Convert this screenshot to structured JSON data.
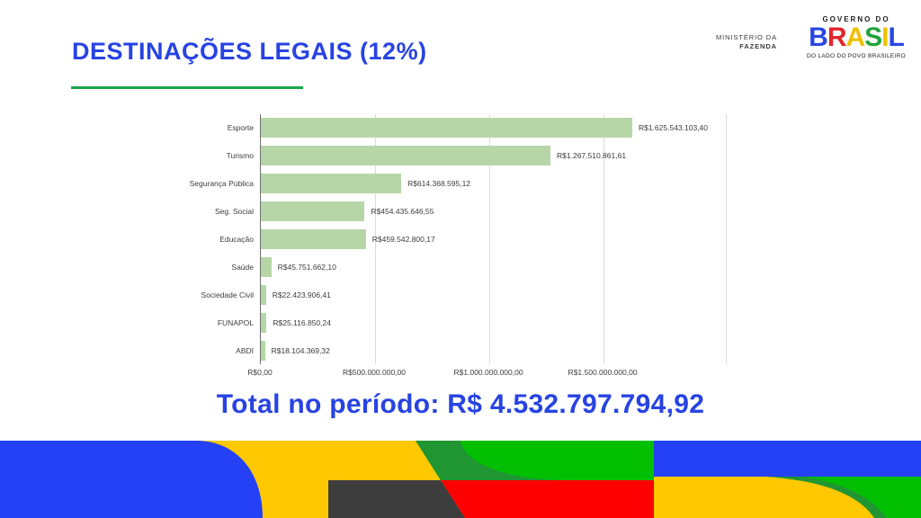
{
  "slide": {
    "title": "DESTINAÇÕES LEGAIS (12%)",
    "total_label": "Total no período: R$ 4.532.797.794,92"
  },
  "header_logos": {
    "ministry_line1": "MINISTÉRIO DA",
    "ministry_line2": "FAZENDA",
    "gov_top": "GOVERNO DO",
    "gov_name_letters": [
      {
        "ch": "B",
        "color": "#2846E4"
      },
      {
        "ch": "R",
        "color": "#E3242B"
      },
      {
        "ch": "A",
        "color": "#EFC000"
      },
      {
        "ch": "S",
        "color": "#22A33D"
      },
      {
        "ch": "I",
        "color": "#EFC000"
      },
      {
        "ch": "L",
        "color": "#2846E4"
      }
    ],
    "gov_tagline": "DO LADO DO POVO BRASILEIRO"
  },
  "colors": {
    "accent_blue": "#2743E3",
    "accent_green": "#1BA64D",
    "bar_green": "#B7D6A8",
    "band_blue": "#2441F5",
    "band_yellow": "#FFC800",
    "band_green_bright": "#02C001",
    "band_green_dark": "#1F9632",
    "band_red": "#FE0000",
    "band_gray": "#3D3D3D"
  },
  "chart_data": {
    "type": "bar",
    "orientation": "horizontal",
    "title": "",
    "xlabel": "",
    "ylabel": "",
    "grid": true,
    "legend": false,
    "categories": [
      "Esporte",
      "Turismo",
      "Segurança Pública",
      "Seg. Social",
      "Educação",
      "Saúde",
      "Sociedade Civil",
      "FUNAPOL",
      "ABDI"
    ],
    "values": [
      1625543103.4,
      1267510861.61,
      614368595.12,
      454435646.55,
      459542800.17,
      45751662.1,
      22423906.41,
      25116850.24,
      18104369.32
    ],
    "value_labels": [
      "R$1.625.543.103,40",
      "R$1.267.510.861,61",
      "R$614.368.595,12",
      "R$454.435.646,55",
      "R$459.542.800,17",
      "R$45.751.662,10",
      "R$22.423.906,41",
      "R$25.116.850,24",
      "R$18.104.369,32"
    ],
    "x_tick_values": [
      0,
      500000000,
      1000000000,
      1500000000
    ],
    "x_tick_labels": [
      "R$0,00",
      "R$500.000.000,00",
      "R$1.000.000.000,00",
      "R$1.500.000.000,00"
    ],
    "xlim": [
      0,
      2035000000
    ]
  }
}
